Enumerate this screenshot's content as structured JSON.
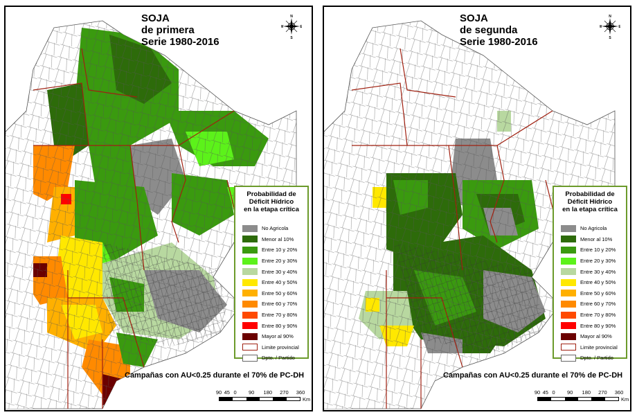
{
  "maps": [
    {
      "title": [
        "SOJA",
        "de primera",
        "Serie 1980-2016"
      ],
      "caption": "Campañas con AU<0.25 durante el 70% de PC-DH",
      "dominant_classes": [
        "Entre 10 y 20%",
        "Menor al 10%",
        "No Agricola",
        "Entre 50 y 60%",
        "Entre 60 y 70%",
        "Mayor al 90%"
      ]
    },
    {
      "title": [
        "SOJA",
        "de segunda",
        "Serie 1980-2016"
      ],
      "caption": "Campañas con AU<0.25 durante el 70% de PC-DH",
      "dominant_classes": [
        "Menor al 10%",
        "Entre 10 y 20%",
        "No Agricola",
        "Entre 30 y 40%",
        "Entre 40 y 50%"
      ]
    }
  ],
  "legend": {
    "title": [
      "Probabilidad de",
      "Déficit Hídrico",
      "en la etapa crítica"
    ],
    "classes": [
      {
        "label": "No Agricola",
        "color": "#8c8c8c"
      },
      {
        "label": "Menor al 10%",
        "color": "#2d6b0a"
      },
      {
        "label": "Entre 10 y 20%",
        "color": "#3a9a0f"
      },
      {
        "label": "Entre 20 y 30%",
        "color": "#5cf21a"
      },
      {
        "label": "Entre 30 y 40%",
        "color": "#b8d8a0"
      },
      {
        "label": "Entre 40 y 50%",
        "color": "#ffe800"
      },
      {
        "label": "Entre 50 y 60%",
        "color": "#ffb000"
      },
      {
        "label": "Entre 60 y 70%",
        "color": "#ff8a00"
      },
      {
        "label": "Entre 70 y 80%",
        "color": "#ff4a00"
      },
      {
        "label": "Entre 80 y 90%",
        "color": "#ff0000"
      },
      {
        "label": "Mayor al 90%",
        "color": "#6b0000"
      },
      {
        "label": "Limite provincial",
        "color": "#a02010",
        "outline": true
      },
      {
        "label": "Dpto. / Partido",
        "color": "#ffffff",
        "outline": true
      }
    ]
  },
  "scale": {
    "ticks": [
      "90",
      "45",
      "0",
      "90",
      "180",
      "270",
      "360"
    ],
    "unit": "Km"
  },
  "compass": {
    "n": "N",
    "s": "S",
    "e": "E",
    "w": "W"
  }
}
